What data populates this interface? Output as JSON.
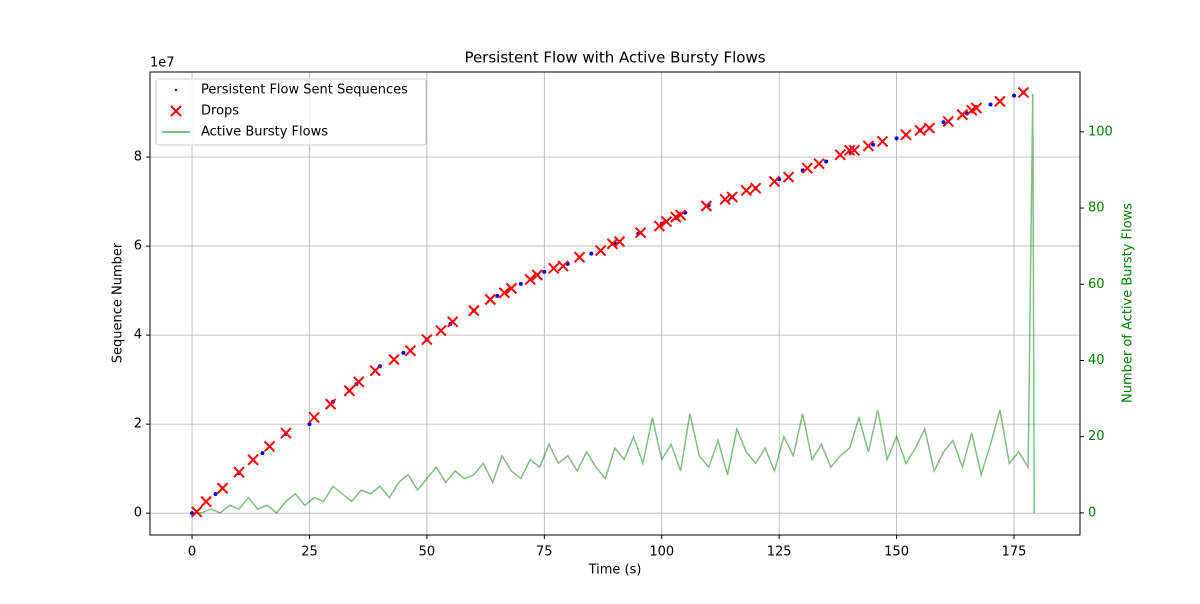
{
  "chart_data": {
    "type": "scatter",
    "title": "Persistent Flow with Active Bursty Flows",
    "xlabel": "Time (s)",
    "ylabel": "Sequence Number",
    "y2label": "Number of Active Bursty Flows",
    "y_offset_label": "1e7",
    "xlim": [
      -8.95,
      189.05
    ],
    "ylim": [
      -4900000,
      99100000
    ],
    "y2lim": [
      -5.8,
      115.7
    ],
    "xticks": [
      0,
      25,
      50,
      75,
      100,
      125,
      150,
      175
    ],
    "yticks": [
      0,
      {
        "value": 20000000,
        "label": "2"
      },
      {
        "value": 40000000,
        "label": "4"
      },
      {
        "value": 60000000,
        "label": "6"
      },
      {
        "value": 80000000,
        "label": "8"
      }
    ],
    "y2ticks": [
      0,
      20,
      40,
      60,
      80,
      100
    ],
    "grid": true,
    "legend": "upper left",
    "y2color": "#008000",
    "series": [
      {
        "name": "Persistent Flow Sent Sequences",
        "type": "scatter",
        "marker": "dot",
        "color": "#0000ff",
        "x": [
          0,
          5,
          10,
          15,
          20,
          25,
          30,
          35,
          40,
          45,
          50,
          55,
          60,
          65,
          70,
          75,
          80,
          85,
          90,
          95,
          100,
          105,
          110,
          115,
          120,
          125,
          130,
          135,
          140,
          145,
          150,
          155,
          160,
          165,
          170,
          175,
          177
        ],
        "values": [
          0,
          4300000,
          9000000,
          13500000,
          17800000,
          20000000,
          25000000,
          29000000,
          33000000,
          36000000,
          39000000,
          42500000,
          45500000,
          48800000,
          51500000,
          54200000,
          56000000,
          58300000,
          60700000,
          62800000,
          65000000,
          67500000,
          69200000,
          71000000,
          73000000,
          75000000,
          77000000,
          79000000,
          81200000,
          82800000,
          84200000,
          86000000,
          87800000,
          89800000,
          91800000,
          93800000,
          94500000
        ]
      },
      {
        "name": "Drops",
        "type": "scatter",
        "marker": "x",
        "color": "#ff0000",
        "x": [
          1,
          3,
          6.5,
          10,
          13,
          16.5,
          20,
          26,
          29.5,
          33.5,
          35.5,
          39,
          43,
          46.5,
          50,
          53,
          55.5,
          60,
          63.5,
          66.5,
          68,
          72,
          73.5,
          77,
          79,
          82.5,
          87,
          89.5,
          91,
          95.5,
          99.5,
          101,
          103,
          104,
          109.5,
          113.5,
          115,
          118,
          120,
          124,
          127,
          131,
          133.5,
          138,
          140,
          141,
          144,
          147,
          152,
          155,
          157,
          161,
          164,
          166,
          167,
          172,
          177
        ],
        "values": [
          300000,
          2600000,
          5600000,
          9200000,
          12000000,
          15000000,
          18000000,
          21500000,
          24500000,
          27500000,
          29500000,
          32000000,
          34500000,
          36500000,
          39000000,
          41000000,
          43000000,
          45500000,
          48000000,
          49500000,
          50500000,
          52500000,
          53500000,
          55000000,
          55500000,
          57500000,
          59000000,
          60500000,
          61000000,
          63000000,
          64500000,
          65500000,
          66500000,
          67000000,
          69000000,
          70500000,
          71000000,
          72500000,
          73000000,
          74500000,
          75500000,
          77500000,
          78500000,
          80500000,
          81500000,
          81500000,
          82500000,
          83500000,
          85000000,
          86000000,
          86500000,
          88000000,
          89500000,
          90500000,
          91000000,
          92500000,
          94500000
        ]
      },
      {
        "name": "Active Bursty Flows",
        "type": "line",
        "axis": "y2",
        "color": "#008000",
        "x": [
          0,
          2,
          4,
          6,
          8,
          10,
          12,
          14,
          16,
          18,
          20,
          22,
          24,
          26,
          28,
          30,
          32,
          34,
          36,
          38,
          40,
          42,
          44,
          46,
          48,
          50,
          52,
          54,
          56,
          58,
          60,
          62,
          64,
          66,
          68,
          70,
          72,
          74,
          76,
          78,
          80,
          82,
          84,
          86,
          88,
          90,
          92,
          94,
          96,
          98,
          100,
          102,
          104,
          106,
          108,
          110,
          112,
          114,
          116,
          118,
          120,
          122,
          124,
          126,
          128,
          130,
          132,
          134,
          136,
          138,
          140,
          142,
          144,
          146,
          148,
          150,
          152,
          154,
          156,
          158,
          160,
          162,
          164,
          166,
          168,
          170,
          172,
          174,
          176,
          178,
          179,
          179.3
        ],
        "values": [
          0,
          0,
          1,
          0,
          2,
          1,
          4,
          1,
          2,
          0,
          3,
          5,
          2,
          4,
          3,
          7,
          5,
          3,
          6,
          5,
          7,
          4,
          8,
          10,
          6,
          9,
          12,
          8,
          11,
          9,
          10,
          13,
          8,
          15,
          11,
          9,
          14,
          12,
          18,
          13,
          15,
          11,
          16,
          12,
          9,
          17,
          14,
          20,
          13,
          25,
          14,
          18,
          11,
          26,
          15,
          12,
          19,
          10,
          22,
          16,
          13,
          17,
          11,
          20,
          15,
          26,
          14,
          18,
          12,
          15,
          17,
          25,
          16,
          27,
          14,
          20,
          13,
          17,
          22,
          11,
          16,
          19,
          12,
          21,
          10,
          18,
          27,
          13,
          16,
          12,
          110,
          0
        ]
      }
    ]
  }
}
